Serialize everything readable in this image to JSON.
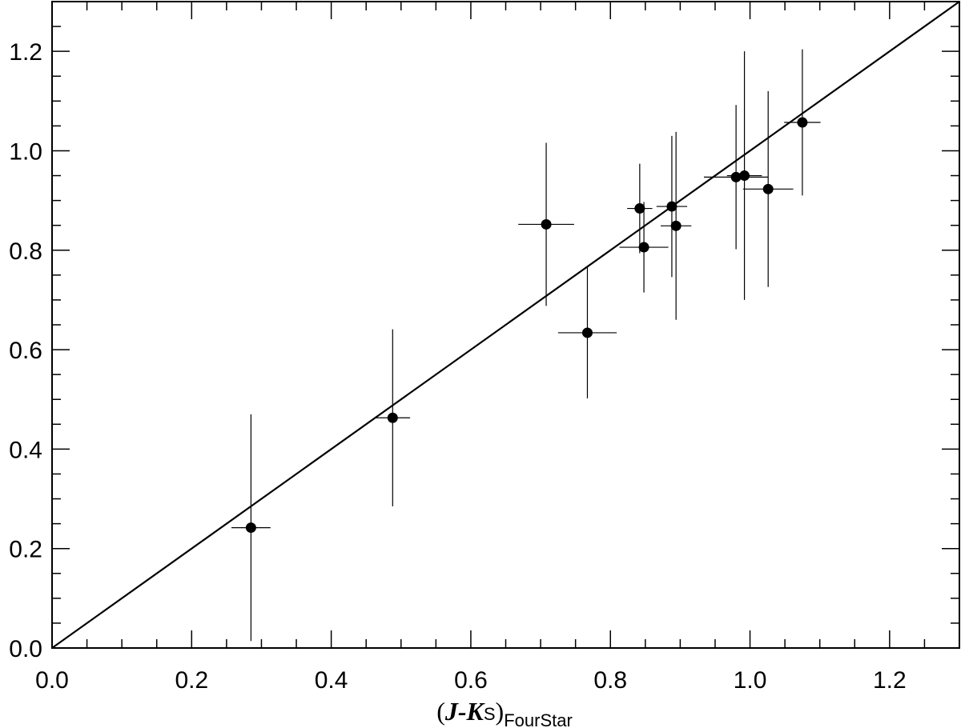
{
  "chart_data": {
    "type": "scatter",
    "title": "",
    "xlabel": {
      "open_paren": "(",
      "main": "J-K",
      "sub_s": "S",
      "close_paren": ")",
      "sub": "FourStar"
    },
    "ylabel": "",
    "xlim": [
      0.0,
      1.3
    ],
    "ylim": [
      0.0,
      1.3
    ],
    "x_major_ticks": [
      0.0,
      0.2,
      0.4,
      0.6,
      0.8,
      1.0,
      1.2
    ],
    "y_major_ticks": [
      0.0,
      0.2,
      0.4,
      0.6,
      0.8,
      1.0,
      1.2
    ],
    "x_tick_labels": [
      "0.0",
      "0.2",
      "0.4",
      "0.6",
      "0.8",
      "1.0",
      "1.2"
    ],
    "y_tick_labels": [
      "0.0",
      "0.2",
      "0.4",
      "0.6",
      "0.8",
      "1.0",
      "1.2"
    ],
    "minor_tick_step": 0.05,
    "grid": false,
    "reference_line": {
      "type": "one-to-one",
      "from": [
        0.0,
        0.0
      ],
      "to": [
        1.3,
        1.3
      ]
    },
    "points": [
      {
        "x": 0.285,
        "y": 0.242,
        "xerr": 0.028,
        "yerr": 0.228
      },
      {
        "x": 0.488,
        "y": 0.463,
        "xerr": 0.025,
        "yerr": 0.178
      },
      {
        "x": 0.708,
        "y": 0.852,
        "xerr": 0.04,
        "yerr": 0.164
      },
      {
        "x": 0.767,
        "y": 0.634,
        "xerr": 0.042,
        "yerr": 0.132
      },
      {
        "x": 0.842,
        "y": 0.884,
        "xerr": 0.018,
        "yerr": 0.09
      },
      {
        "x": 0.848,
        "y": 0.806,
        "xerr": 0.035,
        "yerr": 0.091
      },
      {
        "x": 0.888,
        "y": 0.888,
        "xerr": 0.022,
        "yerr": 0.142
      },
      {
        "x": 0.894,
        "y": 0.849,
        "xerr": 0.022,
        "yerr": 0.189
      },
      {
        "x": 0.98,
        "y": 0.947,
        "xerr": 0.046,
        "yerr": 0.145
      },
      {
        "x": 0.992,
        "y": 0.95,
        "xerr": 0.025,
        "yerr": 0.25
      },
      {
        "x": 1.026,
        "y": 0.923,
        "xerr": 0.036,
        "yerr": 0.197
      },
      {
        "x": 1.075,
        "y": 1.057,
        "xerr": 0.026,
        "yerr": 0.147
      }
    ]
  }
}
